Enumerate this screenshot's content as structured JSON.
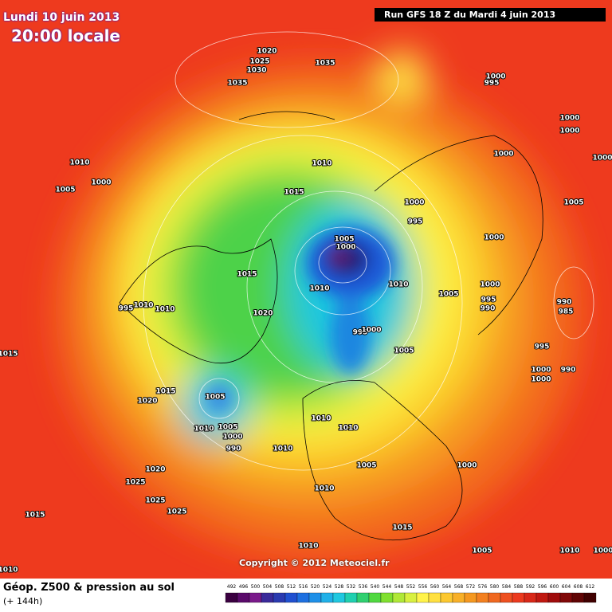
{
  "header": {
    "date": "Lundi 10 juin 2013",
    "time": "20:00 locale",
    "run": "Run GFS 18 Z du Mardi 4 juin 2013"
  },
  "footer": {
    "copyright": "Copyright © 2012 Meteociel.fr",
    "title": "Géop. Z500 & pression au sol",
    "subtitle": "(+ 144h)"
  },
  "legend": {
    "values": [
      492,
      496,
      500,
      504,
      508,
      512,
      516,
      520,
      524,
      528,
      532,
      536,
      540,
      544,
      548,
      552,
      556,
      560,
      564,
      568,
      572,
      576,
      580,
      584,
      588,
      592,
      596,
      600,
      604,
      608,
      612
    ],
    "colors": [
      "#3a0040",
      "#5a0a6a",
      "#7a1a8a",
      "#3a2a9a",
      "#2a3ab0",
      "#2050d0",
      "#1e70e0",
      "#1e90e8",
      "#20b0e8",
      "#20c8e0",
      "#20d0b0",
      "#30d070",
      "#50d840",
      "#80e030",
      "#b0e838",
      "#d8f040",
      "#fff34a",
      "#ffe040",
      "#fcc830",
      "#f8b028",
      "#f59820",
      "#f38020",
      "#f06820",
      "#ee5020",
      "#ec3a1e",
      "#d82818",
      "#c01810",
      "#a00c0c",
      "#800808",
      "#600404",
      "#400000"
    ]
  },
  "isobars": [
    1020,
    1025,
    1030,
    1035,
    1035,
    1000,
    995,
    1000,
    1000,
    1000,
    1000,
    1010,
    1010,
    1000,
    1005,
    1015,
    1000,
    1005,
    995,
    1000,
    1005,
    1000,
    1015,
    1010,
    1010,
    1005,
    1000,
    995,
    990,
    990,
    985,
    995,
    1010,
    1010,
    1020,
    995,
    1000,
    1005,
    1015,
    995,
    1000,
    1000,
    990,
    1015,
    1020,
    1005,
    1010,
    1010,
    1010,
    1005,
    1000,
    990,
    1010,
    1005,
    1000,
    1020,
    1025,
    1010,
    1025,
    1025,
    1015,
    1015,
    1010,
    1005,
    1010,
    1000,
    1010
  ]
}
